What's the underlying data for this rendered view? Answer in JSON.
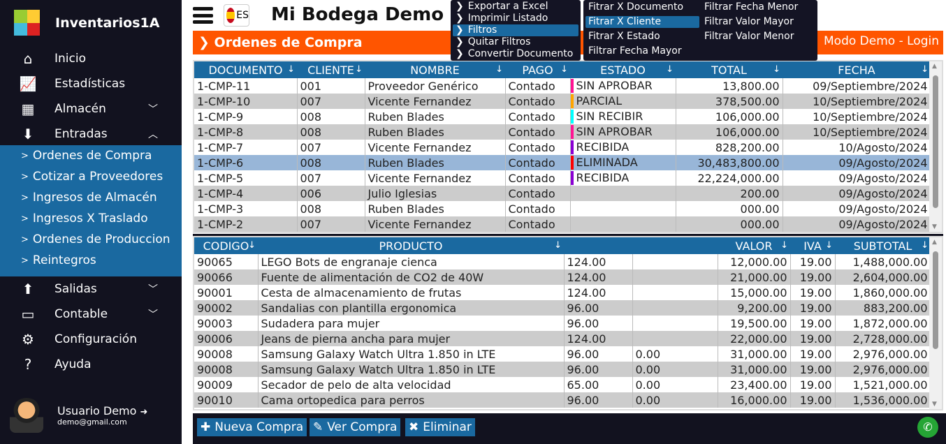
{
  "sidebar": {
    "brand": "Inventarios1A",
    "items": [
      {
        "label": "Inicio",
        "icon": "home-icon"
      },
      {
        "label": "Estadísticas",
        "icon": "chart-icon"
      },
      {
        "label": "Almacén",
        "icon": "store-icon",
        "chevron": "down"
      },
      {
        "label": "Entradas",
        "icon": "inbox-down-icon",
        "chevron": "up"
      }
    ],
    "submenu": [
      "Ordenes de Compra",
      "Cotizar a Proveedores",
      "Ingresos de Almacén",
      "Ingresos X Traslado",
      "Ordenes de Produccion",
      "Reintegros"
    ],
    "items2": [
      {
        "label": "Salidas",
        "icon": "inbox-up-icon",
        "chevron": "down"
      },
      {
        "label": "Contable",
        "icon": "wallet-icon",
        "chevron": "down"
      },
      {
        "label": "Configuración",
        "icon": "gear-icon"
      },
      {
        "label": "Ayuda",
        "icon": "help-icon"
      }
    ],
    "user": {
      "name": "Usuario Demo",
      "email": "demo@gmail.com"
    }
  },
  "header": {
    "lang": "ES",
    "title": "Mi Bodega Demo"
  },
  "section": {
    "title": "Ordenes de Compra",
    "login": "Modo Demo - Login"
  },
  "orders": {
    "columns": [
      "DOCUMENTO",
      "CLIENTE",
      "NOMBRE",
      "PAGO",
      "ESTADO",
      "TOTAL",
      "FECHA"
    ],
    "rows": [
      [
        "1-CMP-11",
        "001",
        "Proveedor Genérico",
        "Contado",
        "SIN APROBAR",
        "13,800.00",
        "09/Septiembre/2024"
      ],
      [
        "1-CMP-10",
        "007",
        "Vicente Fernandez",
        "Contado",
        "PARCIAL",
        "378,500.00",
        "10/Septiembre/2024"
      ],
      [
        "1-CMP-9",
        "008",
        "Ruben Blades",
        "Contado",
        "SIN RECIBIR",
        "106,000.00",
        "10/Septiembre/2024"
      ],
      [
        "1-CMP-8",
        "008",
        "Ruben Blades",
        "Contado",
        "SIN APROBAR",
        "106,000.00",
        "10/Septiembre/2024"
      ],
      [
        "1-CMP-7",
        "007",
        "Vicente Fernandez",
        "Contado",
        "RECIBIDA",
        "828,200.00",
        "10/Agosto/2024"
      ],
      [
        "1-CMP-6",
        "008",
        "Ruben Blades",
        "Contado",
        "ELIMINADA",
        "30,483,800.00",
        "09/Agosto/2024"
      ],
      [
        "1-CMP-5",
        "007",
        "Vicente Fernandez",
        "Contado",
        "RECIBIDA",
        "22,224,000.00",
        "09/Agosto/2024"
      ],
      [
        "1-CMP-4",
        "006",
        "Julio Iglesias",
        "Contado",
        "",
        "200.00",
        "09/Agosto/2024"
      ],
      [
        "1-CMP-3",
        "008",
        "Ruben Blades",
        "Contado",
        "",
        "000.00",
        "09/Agosto/2024"
      ],
      [
        "1-CMP-2",
        "007",
        "Vicente Fernandez",
        "Contado",
        "",
        "000.00",
        "09/Agosto/2024"
      ]
    ],
    "selected_index": 5,
    "status_colors": {
      "SIN APROBAR": "#ff1493",
      "PARCIAL": "#ffa500",
      "SIN RECIBIR": "#00ffff",
      "RECIBIDA": "#8a00d4",
      "ELIMINADA": "#ff0000"
    }
  },
  "items": {
    "columns": [
      "CODIGO",
      "PRODUCTO",
      "",
      "",
      "VALOR",
      "IVA",
      "SUBTOTAL"
    ],
    "rows": [
      [
        "90065",
        "LEGO Bots de engranaje cienca",
        "124.00",
        "",
        "12,000.00",
        "19.00",
        "1,488,000.00"
      ],
      [
        "90066",
        "Fuente de alimentación de CO2 de 40W",
        "124.00",
        "",
        "21,000.00",
        "19.00",
        "2,604,000.00"
      ],
      [
        "90001",
        "Cesta de almacenamiento de frutas",
        "124.00",
        "",
        "15,000.00",
        "19.00",
        "1,860,000.00"
      ],
      [
        "90002",
        "Sandalias con plantilla ergonomica",
        "96.00",
        "",
        "9,200.00",
        "19.00",
        "883,200.00"
      ],
      [
        "90003",
        "Sudadera para mujer",
        "96.00",
        "",
        "19,500.00",
        "19.00",
        "1,872,000.00"
      ],
      [
        "90006",
        "Jeans de pierna ancha para mujer",
        "124.00",
        "",
        "22,000.00",
        "19.00",
        "2,728,000.00"
      ],
      [
        "90008",
        "Samsung Galaxy Watch Ultra 1.850 in LTE",
        "96.00",
        "0.00",
        "31,000.00",
        "19.00",
        "2,976,000.00"
      ],
      [
        "90008",
        "Samsung Galaxy Watch Ultra 1.850 in LTE",
        "96.00",
        "0.00",
        "31,000.00",
        "19.00",
        "2,976,000.00"
      ],
      [
        "90009",
        "Secador de pelo de alta velocidad",
        "65.00",
        "0.00",
        "23,400.00",
        "19.00",
        "1,521,000.00"
      ],
      [
        "90010",
        "Cama ortopedica para perros",
        "96.00",
        "0.00",
        "16,000.00",
        "19.00",
        "1,536,000.00"
      ]
    ]
  },
  "footer": {
    "new": "Nueva Compra",
    "view": "Ver Compra",
    "delete": "Eliminar"
  },
  "context_menu": {
    "items": [
      "Exportar a Excel",
      "Imprimir Listado",
      "Filtros",
      "Quitar Filtros",
      "Convertir Documento"
    ],
    "active": "Filtros"
  },
  "filter_menu": {
    "items": [
      "Fitrar X Documento",
      "Fitrar X Cliente",
      "Fitrar X Estado",
      "Filtrar Fecha Mayor",
      "Filtrar Fecha Menor",
      "Filtrar Valor Mayor",
      "Filtrar Valor Menor"
    ],
    "active": "Fitrar X Cliente"
  },
  "colors": {
    "sidebar": "#12121f",
    "accent": "#1a69a0",
    "orange": "#ff5500",
    "selected_row": "#98b6d8"
  }
}
